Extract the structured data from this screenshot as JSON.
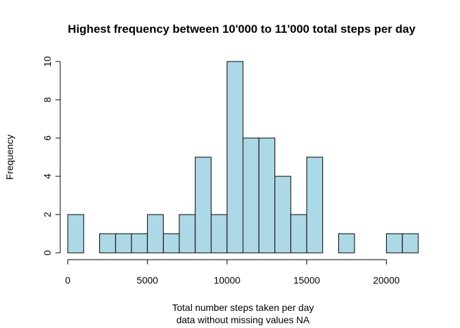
{
  "chart_data": {
    "type": "bar",
    "title": "Highest frequency between 10'000 to 11'000 total steps per day",
    "xlabel_line1": "Total number steps taken per day",
    "xlabel_line2": "data without missing values NA",
    "ylabel": "Frequency",
    "bin_width": 1000,
    "bin_starts": [
      0,
      1000,
      2000,
      3000,
      4000,
      5000,
      6000,
      7000,
      8000,
      9000,
      10000,
      11000,
      12000,
      13000,
      14000,
      15000,
      16000,
      17000,
      18000,
      19000,
      20000,
      21000
    ],
    "values": [
      2,
      0,
      1,
      1,
      1,
      2,
      1,
      2,
      5,
      2,
      10,
      6,
      6,
      4,
      2,
      5,
      0,
      1,
      0,
      0,
      1,
      1
    ],
    "xlim": [
      0,
      22000
    ],
    "ylim": [
      0,
      10
    ],
    "x_ticks": [
      0,
      5000,
      10000,
      15000,
      20000
    ],
    "x_tick_labels": [
      "0",
      "5000",
      "10000",
      "15000",
      "20000"
    ],
    "y_ticks": [
      0,
      2,
      4,
      6,
      8,
      10
    ],
    "y_tick_labels": [
      "0",
      "2",
      "4",
      "6",
      "8",
      "10"
    ],
    "bar_color": "#ADD8E6",
    "edge_color": "#000000",
    "grid": false
  }
}
